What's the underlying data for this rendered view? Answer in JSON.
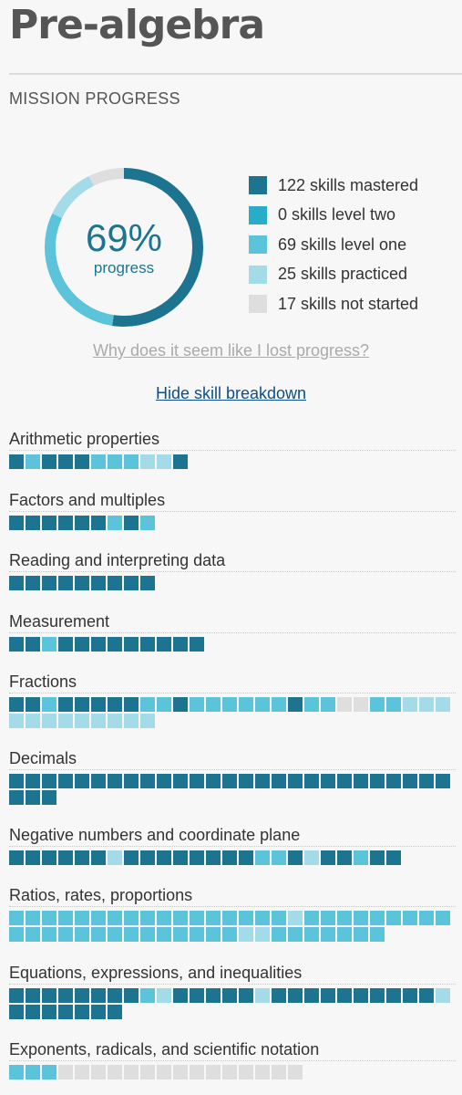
{
  "title": "Pre-algebra",
  "section_label": "MISSION PROGRESS",
  "colors": {
    "mastered": "#1d7490",
    "level_two": "#29acc8",
    "level_one": "#5cc4da",
    "practiced": "#a3dbe8",
    "not_started": "#dedede"
  },
  "progress": {
    "percent_text": "69%",
    "sub_label": "progress",
    "segments": [
      {
        "key": "mastered",
        "count": 122
      },
      {
        "key": "level_two",
        "count": 0
      },
      {
        "key": "level_one",
        "count": 69
      },
      {
        "key": "practiced",
        "count": 25
      },
      {
        "key": "not_started",
        "count": 17
      }
    ]
  },
  "legend": [
    {
      "key": "mastered",
      "label": "122 skills mastered"
    },
    {
      "key": "level_two",
      "label": "0 skills level two"
    },
    {
      "key": "level_one",
      "label": "69 skills level one"
    },
    {
      "key": "practiced",
      "label": "25 skills practiced"
    },
    {
      "key": "not_started",
      "label": "17 skills not started"
    }
  ],
  "links": {
    "lost_progress": "Why does it seem like I lost progress?",
    "hide_breakdown": "Hide skill breakdown"
  },
  "topics": [
    {
      "name": "Arithmetic properties",
      "skills": "MLMMMLLLPPM"
    },
    {
      "name": "Factors and multiples",
      "skills": "MMMMMMLML"
    },
    {
      "name": "Reading and interpreting data",
      "skills": "MMMMMMMMM"
    },
    {
      "name": "Measurement",
      "skills": "MMLMMMMMMMMM"
    },
    {
      "name": "Fractions",
      "skills": "MMLMMMMMLLMLLLLLLMLLNNLLPPPPPPPPPPPP"
    },
    {
      "name": "Decimals",
      "skills": "MMMMMMMMMMMMMMMMMMMMMMMMMMMMMM"
    },
    {
      "name": "Negative numbers and coordinate plane",
      "skills": "MMMMMMPMMMMMMMMLLMPMMLMM"
    },
    {
      "name": "Ratios, rates, proportions",
      "skills": "LLLLLLLLLLLLLLLLLPLLLLLLLLLLLLLLLLLLLLLLLPPLLLLLLL"
    },
    {
      "name": "Equations, expressions, and inequalities",
      "skills": "MMMMMMMMLPMMMMMPMMMMMMMMMMPMMMMMMM"
    },
    {
      "name": "Exponents, radicals, and scientific notation",
      "skills": "LLLNNNNNNNNNNNNNNN"
    }
  ]
}
